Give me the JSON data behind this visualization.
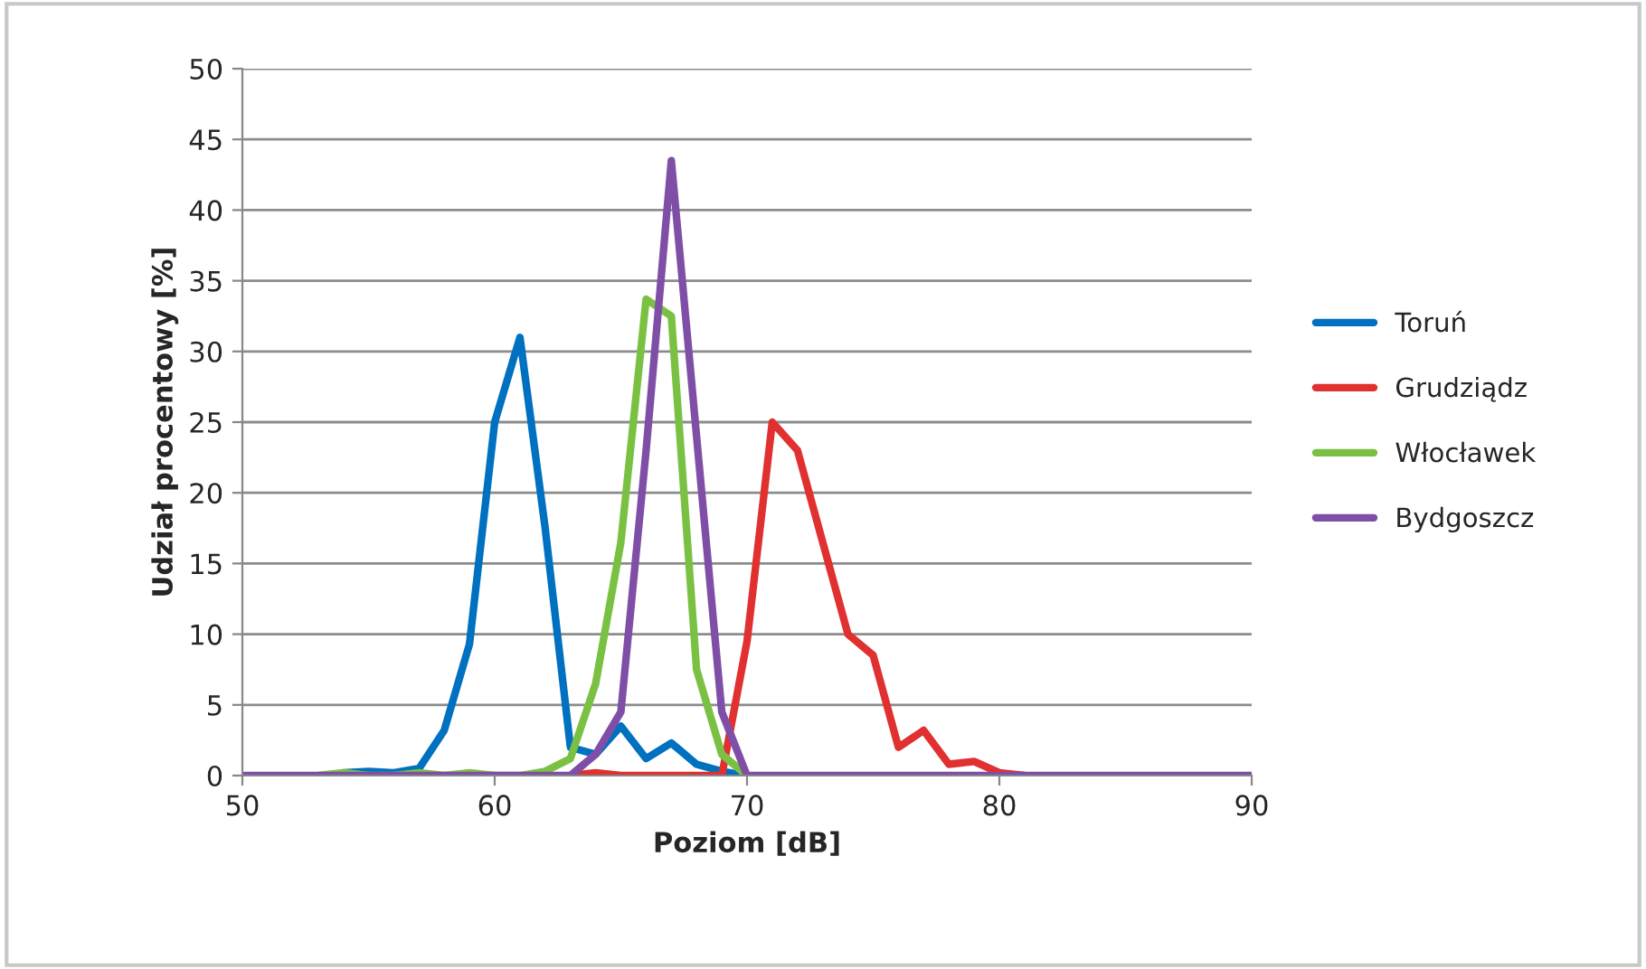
{
  "chart_data": {
    "type": "line",
    "xlabel": "Poziom [dB]",
    "ylabel": "Udział procentowy [%]",
    "x": [
      50,
      51,
      52,
      53,
      54,
      55,
      56,
      57,
      58,
      59,
      60,
      61,
      62,
      63,
      64,
      65,
      66,
      67,
      68,
      69,
      70,
      71,
      72,
      73,
      74,
      75,
      76,
      77,
      78,
      79,
      80,
      81,
      82,
      83,
      84,
      85,
      86,
      87,
      88,
      89,
      90
    ],
    "series": [
      {
        "name": "Toruń",
        "color": "#0070c0",
        "values": [
          null,
          null,
          null,
          null,
          0.2,
          0.3,
          0.2,
          0.5,
          3.2,
          9.3,
          25,
          31,
          17.5,
          2,
          1.5,
          3.5,
          1.2,
          2.3,
          0.8,
          0.3,
          0,
          null,
          null,
          null,
          null,
          null,
          null,
          null,
          null,
          null,
          null,
          null,
          null,
          null,
          null,
          null,
          null,
          null,
          null,
          null,
          null
        ]
      },
      {
        "name": "Grudziądz",
        "color": "#e03030",
        "values": [
          null,
          null,
          null,
          null,
          null,
          null,
          null,
          null,
          null,
          null,
          null,
          null,
          null,
          0,
          0.2,
          0,
          0,
          0,
          0,
          0,
          9.5,
          25,
          23,
          16.5,
          10,
          8.5,
          2,
          3.2,
          0.8,
          1,
          0.2,
          0,
          null,
          null,
          null,
          null,
          null,
          null,
          null,
          null,
          null
        ]
      },
      {
        "name": "Włocławek",
        "color": "#7ac143",
        "values": [
          null,
          null,
          null,
          0,
          0.2,
          0,
          0,
          0.2,
          0,
          0.2,
          0,
          0,
          0.3,
          1.2,
          6.5,
          16.5,
          33.7,
          32.5,
          7.5,
          1.5,
          0,
          null,
          null,
          null,
          null,
          null,
          null,
          null,
          null,
          null,
          null,
          null,
          null,
          null,
          null,
          null,
          null,
          null,
          null,
          null,
          null
        ]
      },
      {
        "name": "Bydgoszcz",
        "color": "#7f4fa8",
        "values": [
          0,
          0,
          0,
          0,
          0,
          0,
          0,
          0,
          0,
          0,
          0,
          0,
          0,
          0,
          1.5,
          4.5,
          23,
          43.5,
          24,
          4.5,
          0,
          0,
          0,
          0,
          0,
          0,
          0,
          0,
          0,
          0,
          0,
          0,
          0,
          0,
          0,
          0,
          0,
          0,
          0,
          0,
          0
        ]
      }
    ],
    "xlim": [
      50,
      90
    ],
    "xticks": [
      50,
      60,
      70,
      80,
      90
    ],
    "ylim": [
      0,
      50
    ],
    "yticks": [
      0,
      5,
      10,
      15,
      20,
      25,
      30,
      35,
      40,
      45,
      50
    ],
    "grid": "y",
    "legend": "right",
    "marker": "none",
    "line_style": "solid"
  }
}
